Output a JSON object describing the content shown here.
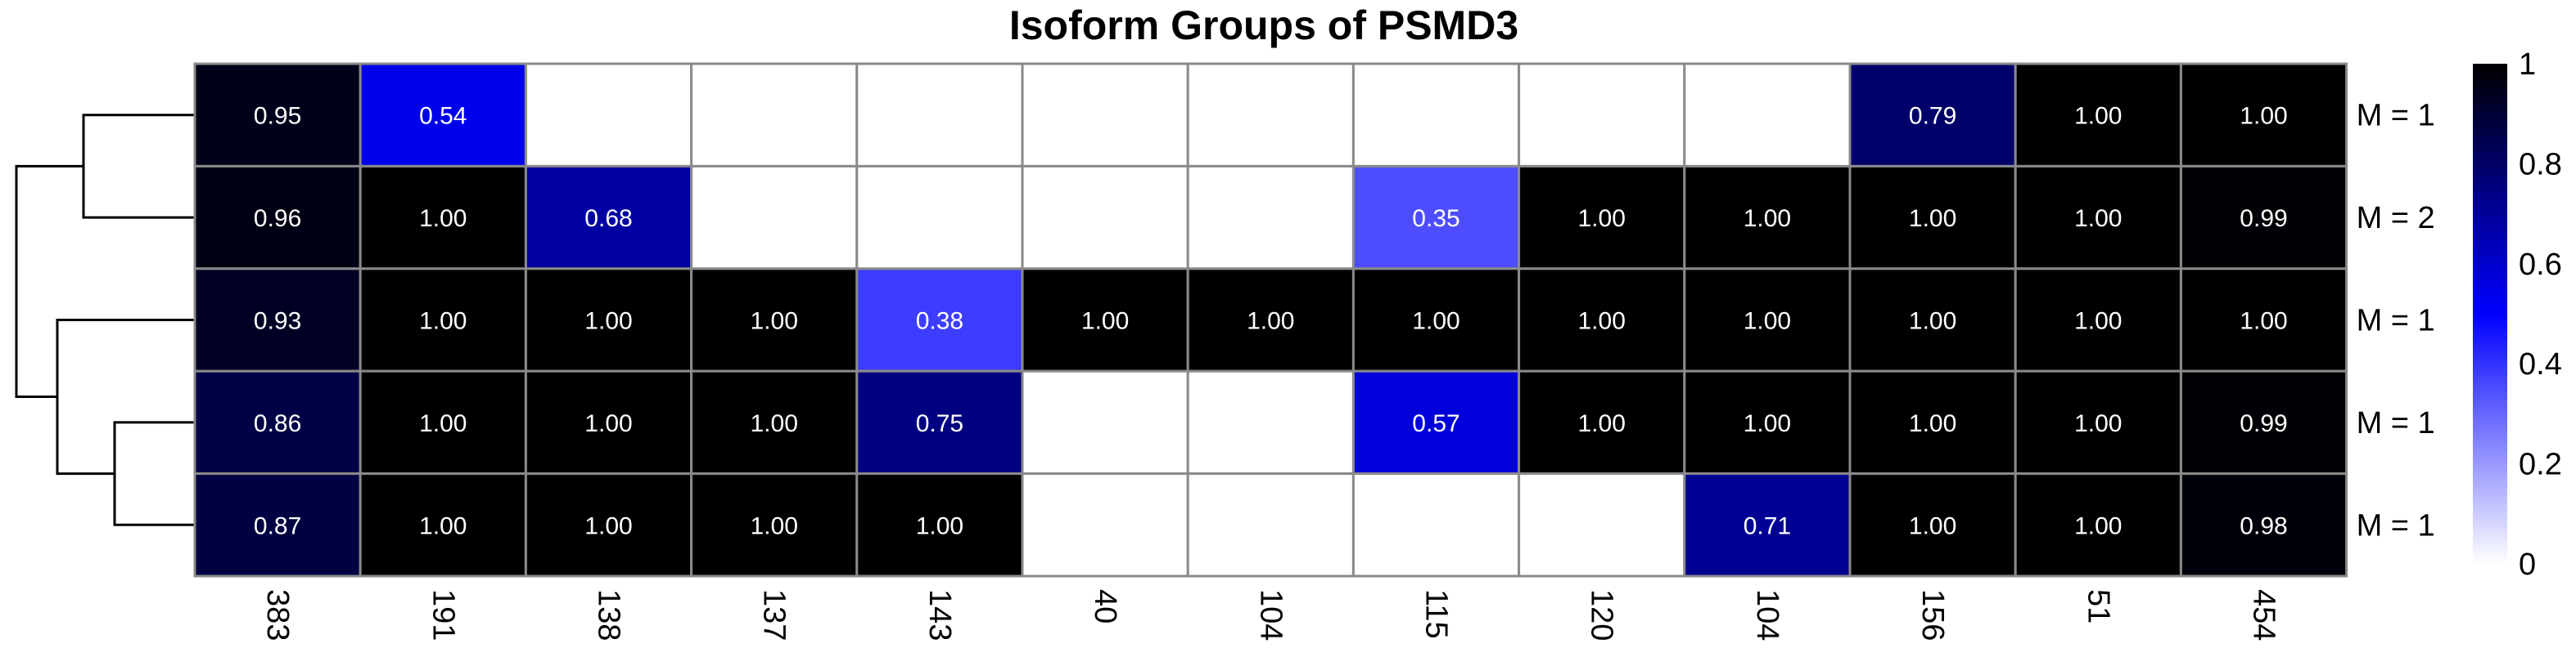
{
  "chart_data": {
    "type": "heatmap",
    "title": "Isoform Groups of PSMD3",
    "columns": [
      "383",
      "191",
      "138",
      "137",
      "143",
      "40",
      "104",
      "115",
      "120",
      "104",
      "156",
      "51",
      "454"
    ],
    "rows": [
      "M = 1",
      "M = 2",
      "M = 1",
      "M = 1",
      "M = 1"
    ],
    "values": [
      [
        0.95,
        0.54,
        null,
        null,
        null,
        null,
        null,
        null,
        null,
        null,
        0.79,
        1.0,
        1.0
      ],
      [
        0.96,
        1.0,
        0.68,
        null,
        null,
        null,
        null,
        0.35,
        1.0,
        1.0,
        1.0,
        1.0,
        0.99
      ],
      [
        0.93,
        1.0,
        1.0,
        1.0,
        0.38,
        1.0,
        1.0,
        1.0,
        1.0,
        1.0,
        1.0,
        1.0,
        1.0
      ],
      [
        0.86,
        1.0,
        1.0,
        1.0,
        0.75,
        null,
        null,
        0.57,
        1.0,
        1.0,
        1.0,
        1.0,
        0.99
      ],
      [
        0.87,
        1.0,
        1.0,
        1.0,
        1.0,
        null,
        null,
        null,
        null,
        0.71,
        1.0,
        1.0,
        0.98
      ]
    ],
    "value_labels": [
      [
        "0.95",
        "0.54",
        "",
        "",
        "",
        "",
        "",
        "",
        "",
        "",
        "0.79",
        "1.00",
        "1.00"
      ],
      [
        "0.96",
        "1.00",
        "0.68",
        "",
        "",
        "",
        "",
        "0.35",
        "1.00",
        "1.00",
        "1.00",
        "1.00",
        "0.99"
      ],
      [
        "0.93",
        "1.00",
        "1.00",
        "1.00",
        "0.38",
        "1.00",
        "1.00",
        "1.00",
        "1.00",
        "1.00",
        "1.00",
        "1.00",
        "1.00"
      ],
      [
        "0.86",
        "1.00",
        "1.00",
        "1.00",
        "0.75",
        "",
        "",
        "0.57",
        "1.00",
        "1.00",
        "1.00",
        "1.00",
        "0.99"
      ],
      [
        "0.87",
        "1.00",
        "1.00",
        "1.00",
        "1.00",
        "",
        "",
        "",
        "",
        "0.71",
        "1.00",
        "1.00",
        "0.98"
      ]
    ],
    "colorbar": {
      "range": [
        0,
        1
      ],
      "ticks": [
        "0",
        "0.2",
        "0.4",
        "0.6",
        "0.8",
        "1"
      ],
      "tick_values": [
        0,
        0.2,
        0.4,
        0.6,
        0.8,
        1
      ],
      "colors": [
        "#ffffff",
        "#0000ff",
        "#000000"
      ]
    },
    "dendrogram": {
      "side": "left",
      "merges": [
        [
          0,
          1
        ],
        [
          3,
          4
        ],
        [
          2,
          "34"
        ],
        [
          "01",
          "234"
        ]
      ]
    },
    "cell_border_color": "#8a8a8a",
    "empty_cell_color": "#ffffff"
  }
}
